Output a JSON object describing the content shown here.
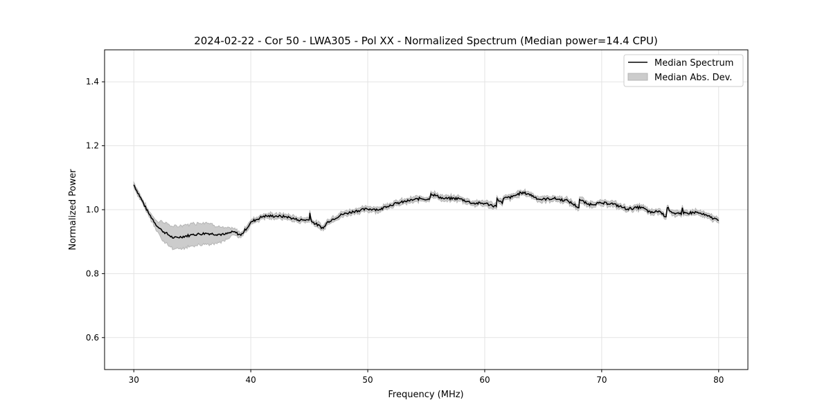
{
  "chart_data": {
    "type": "line",
    "title": "2024-02-22 - Cor 50 - LWA305 - Pol XX - Normalized Spectrum (Median power=14.4 CPU)",
    "xlabel": "Frequency (MHz)",
    "ylabel": "Normalized Power",
    "xlim": [
      27.5,
      82.5
    ],
    "ylim": [
      0.5,
      1.5
    ],
    "xticks": [
      30,
      40,
      50,
      60,
      70,
      80
    ],
    "xtick_labels": [
      "30",
      "40",
      "50",
      "60",
      "70",
      "80"
    ],
    "yticks": [
      0.6,
      0.8,
      1.0,
      1.2,
      1.4
    ],
    "ytick_labels": [
      "0.6",
      "0.8",
      "1.0",
      "1.2",
      "1.4"
    ],
    "grid": true,
    "legend_position": "top-right",
    "legend": [
      "Median Spectrum",
      "Median Abs. Dev."
    ],
    "series": [
      {
        "name": "Median Spectrum",
        "color": "#000000",
        "x": [
          30,
          31.25,
          32.05,
          32.4,
          33.4,
          34.8,
          35,
          36.2,
          37.7,
          38.55,
          39.15,
          40.1,
          41.1,
          42.1,
          43.05,
          44.05,
          45.0,
          45.05,
          45.2,
          46.2,
          46.6,
          47.8,
          48.95,
          49.95,
          50.5,
          51.1,
          51.5,
          52.5,
          53.5,
          54.5,
          55.25,
          55.4,
          56.45,
          57.8,
          59,
          60,
          61,
          61.05,
          61.5,
          61.6,
          62.35,
          63.1,
          63.7,
          64.7,
          65.9,
          67.1,
          68.05,
          68.1,
          68.8,
          70,
          70.8,
          72.2,
          73.4,
          74.2,
          74.9,
          75.5,
          75.6,
          76.1,
          76.8,
          76.9,
          77.0,
          78.1,
          79.05,
          79.9,
          80
        ],
        "y": [
          1.078,
          0.99,
          0.946,
          0.935,
          0.911,
          0.92,
          0.922,
          0.926,
          0.922,
          0.931,
          0.92,
          0.963,
          0.98,
          0.98,
          0.978,
          0.968,
          0.968,
          0.99,
          0.963,
          0.942,
          0.963,
          0.985,
          0.996,
          1.002,
          1.002,
          1.0,
          1.01,
          1.02,
          1.028,
          1.035,
          1.032,
          1.05,
          1.035,
          1.035,
          1.02,
          1.02,
          1.01,
          1.035,
          1.02,
          1.035,
          1.04,
          1.053,
          1.05,
          1.032,
          1.035,
          1.028,
          1.006,
          1.032,
          1.017,
          1.02,
          1.02,
          1.002,
          1.008,
          0.99,
          0.996,
          0.978,
          1.006,
          0.99,
          0.985,
          1.006,
          0.988,
          0.992,
          0.98,
          0.968,
          0.966
        ]
      },
      {
        "name": "Median Abs. Dev.",
        "color": "#cccccc",
        "mad": [
          0.008,
          0.008,
          0.015,
          0.03,
          0.035,
          0.035,
          0.035,
          0.035,
          0.02,
          0.01,
          0.008,
          0.008,
          0.008,
          0.008,
          0.008,
          0.008,
          0.008,
          0.008,
          0.008,
          0.008,
          0.008,
          0.008,
          0.008,
          0.008,
          0.008,
          0.008,
          0.008,
          0.008,
          0.008,
          0.008,
          0.008,
          0.008,
          0.008,
          0.008,
          0.008,
          0.008,
          0.008,
          0.008,
          0.008,
          0.008,
          0.008,
          0.008,
          0.008,
          0.008,
          0.008,
          0.008,
          0.008,
          0.008,
          0.008,
          0.008,
          0.008,
          0.008,
          0.008,
          0.008,
          0.008,
          0.008,
          0.008,
          0.008,
          0.008,
          0.008,
          0.008,
          0.008,
          0.008,
          0.008,
          0.008
        ]
      }
    ]
  }
}
